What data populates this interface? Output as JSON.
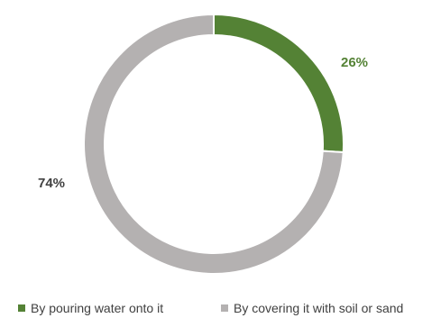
{
  "chart_data": {
    "type": "pie",
    "variant": "donut",
    "start_angle": "12 o'clock, clockwise",
    "legend_position": "bottom",
    "series": [
      {
        "name": "By pouring water onto it",
        "value": 26,
        "label": "26%",
        "color": "#548235",
        "label_color": "#548235"
      },
      {
        "name": "By covering it with soil or sand",
        "value": 74,
        "label": "74%",
        "color": "#b4b1b1",
        "label_color": "#404040"
      }
    ]
  }
}
